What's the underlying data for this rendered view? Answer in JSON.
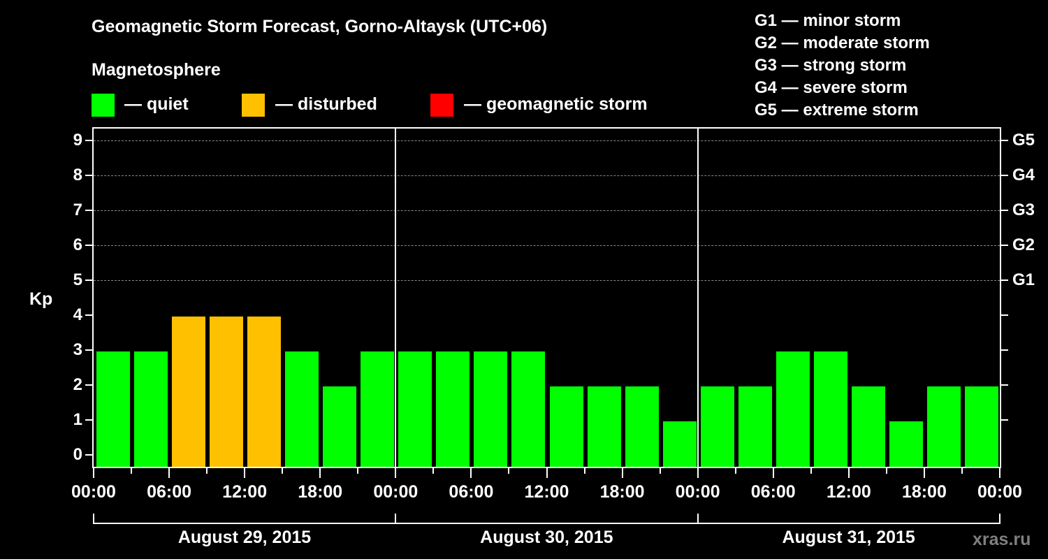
{
  "header": {
    "title": "Geomagnetic Storm Forecast, Gorno-Altaysk (UTC+06)",
    "subtitle": "Magnetosphere"
  },
  "legend": [
    {
      "label": "— quiet",
      "color": "#00ff00"
    },
    {
      "label": "— disturbed",
      "color": "#ffc000"
    },
    {
      "label": "— geomagnetic storm",
      "color": "#ff0000"
    }
  ],
  "g_scale": [
    "G1 — minor storm",
    "G2 — moderate storm",
    "G3 — strong storm",
    "G4 — severe storm",
    "G5 — extreme storm"
  ],
  "axes": {
    "ylabel": "Kp",
    "yticks": [
      "0",
      "1",
      "2",
      "3",
      "4",
      "5",
      "6",
      "7",
      "8",
      "9"
    ],
    "right_labels": [
      {
        "kp": 5,
        "label": "G1"
      },
      {
        "kp": 6,
        "label": "G2"
      },
      {
        "kp": 7,
        "label": "G3"
      },
      {
        "kp": 8,
        "label": "G4"
      },
      {
        "kp": 9,
        "label": "G5"
      }
    ],
    "xticks": [
      "00:00",
      "06:00",
      "12:00",
      "18:00",
      "00:00",
      "06:00",
      "12:00",
      "18:00",
      "00:00",
      "06:00",
      "12:00",
      "18:00",
      "00:00"
    ]
  },
  "watermark": "xras.ru",
  "chart_data": {
    "type": "bar",
    "title": "Geomagnetic Storm Forecast, Gorno-Altaysk (UTC+06)",
    "xlabel": "",
    "ylabel": "Kp",
    "ylim": [
      0,
      9
    ],
    "grid": true,
    "days": [
      "August 29, 2015",
      "August 30, 2015",
      "August 31, 2015"
    ],
    "interval_hours": 3,
    "categories": [
      "Aug 29 00-03",
      "Aug 29 03-06",
      "Aug 29 06-09",
      "Aug 29 09-12",
      "Aug 29 12-15",
      "Aug 29 15-18",
      "Aug 29 18-21",
      "Aug 29 21-24",
      "Aug 30 00-03",
      "Aug 30 03-06",
      "Aug 30 06-09",
      "Aug 30 09-12",
      "Aug 30 12-15",
      "Aug 30 15-18",
      "Aug 30 18-21",
      "Aug 30 21-24",
      "Aug 31 00-03",
      "Aug 31 03-06",
      "Aug 31 06-09",
      "Aug 31 09-12",
      "Aug 31 12-15",
      "Aug 31 15-18",
      "Aug 31 18-21",
      "Aug 31 21-24"
    ],
    "values": [
      3,
      3,
      4,
      4,
      4,
      3,
      2,
      3,
      3,
      3,
      3,
      3,
      2,
      2,
      2,
      1,
      2,
      2,
      3,
      3,
      2,
      1,
      2,
      2
    ],
    "status": [
      "quiet",
      "quiet",
      "disturbed",
      "disturbed",
      "disturbed",
      "quiet",
      "quiet",
      "quiet",
      "quiet",
      "quiet",
      "quiet",
      "quiet",
      "quiet",
      "quiet",
      "quiet",
      "quiet",
      "quiet",
      "quiet",
      "quiet",
      "quiet",
      "quiet",
      "quiet",
      "quiet",
      "quiet"
    ],
    "legend": [
      "quiet",
      "disturbed",
      "geomagnetic storm"
    ],
    "right_axis": {
      "5": "G1",
      "6": "G2",
      "7": "G3",
      "8": "G4",
      "9": "G5"
    }
  }
}
